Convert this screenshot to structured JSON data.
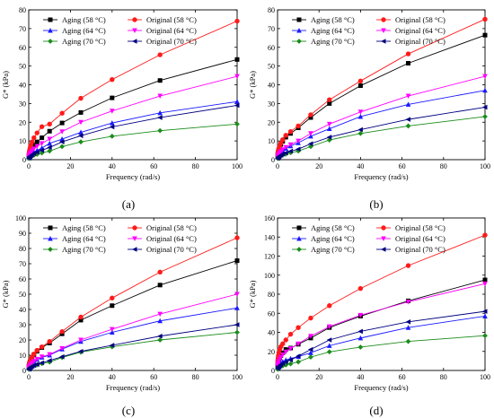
{
  "colors": {
    "aging58": "#000000",
    "orig58": "#ff1a1a",
    "aging64": "#1a1aff",
    "orig64": "#ff00ff",
    "aging70": "#1a8c1a",
    "orig70": "#000080"
  },
  "chart_data": [
    {
      "type": "line",
      "panel_label": "(a)",
      "xlabel": "Frequency (rad/s)",
      "ylabel": "G* (kPa)",
      "xlim": [
        0,
        100
      ],
      "ylim": [
        0,
        80
      ],
      "xticks": [
        0,
        20,
        40,
        60,
        80,
        100
      ],
      "yticks": [
        0,
        10,
        20,
        30,
        40,
        50,
        60,
        70,
        80
      ],
      "x": [
        0.1,
        0.16,
        0.25,
        0.4,
        0.63,
        1,
        1.6,
        2.5,
        4,
        6.3,
        10,
        16,
        25,
        40,
        63,
        100
      ],
      "legend": "top-left",
      "series": [
        {
          "name": "Aging (58 °C)",
          "color_key": "aging58",
          "marker": "square",
          "values": [
            1.8,
            2.2,
            2.8,
            3.5,
            4.3,
            5.2,
            6.4,
            7.8,
            9.5,
            11.7,
            15.2,
            19.6,
            25.2,
            33.0,
            42.3,
            53.5
          ]
        },
        {
          "name": "Original (58 °C)",
          "color_key": "orig58",
          "marker": "circle",
          "values": [
            2.7,
            3.3,
            4.1,
            5.1,
            6.3,
            7.7,
            9.5,
            11.7,
            14.3,
            17.6,
            19.0,
            24.8,
            32.8,
            42.8,
            56.0,
            74.0
          ]
        },
        {
          "name": "Aging (64 °C)",
          "color_key": "aging64",
          "marker": "triangle-up",
          "values": [
            1.0,
            1.2,
            1.5,
            1.9,
            2.3,
            2.8,
            3.4,
            4.1,
            5.0,
            6.2,
            8.7,
            11.0,
            14.6,
            19.6,
            25.0,
            31.0
          ]
        },
        {
          "name": "Original (64 °C)",
          "color_key": "orig64",
          "marker": "triangle-down",
          "values": [
            1.4,
            1.7,
            2.1,
            2.6,
            3.2,
            3.9,
            4.8,
            5.8,
            7.1,
            8.7,
            11.0,
            15.0,
            20.0,
            26.0,
            34.0,
            44.5
          ]
        },
        {
          "name": "Aging (70 °C)",
          "color_key": "aging70",
          "marker": "diamond",
          "values": [
            0.6,
            0.7,
            0.9,
            1.1,
            1.3,
            1.6,
            2.0,
            2.4,
            2.9,
            3.6,
            4.6,
            7.0,
            9.5,
            12.5,
            15.5,
            19.0
          ]
        },
        {
          "name": "Original (70 °C)",
          "color_key": "orig70",
          "marker": "triangle-left",
          "values": [
            0.8,
            1.0,
            1.2,
            1.5,
            1.8,
            2.2,
            2.7,
            3.3,
            4.0,
            5.0,
            6.5,
            9.5,
            12.8,
            17.5,
            22.5,
            29.0
          ]
        }
      ]
    },
    {
      "type": "line",
      "panel_label": "(b)",
      "xlabel": "Frequency (rad/s)",
      "ylabel": "G* (kPa)",
      "xlim": [
        0,
        100
      ],
      "ylim": [
        0,
        80
      ],
      "xticks": [
        0,
        20,
        40,
        60,
        80,
        100
      ],
      "yticks": [
        0,
        10,
        20,
        30,
        40,
        50,
        60,
        70,
        80
      ],
      "x": [
        0.1,
        0.16,
        0.25,
        0.4,
        0.63,
        1,
        1.6,
        2.5,
        4,
        6.3,
        10,
        16,
        25,
        40,
        63,
        100
      ],
      "legend": "top-left",
      "series": [
        {
          "name": "Aging (58 °C)",
          "color_key": "aging58",
          "marker": "square",
          "values": [
            2.4,
            2.9,
            3.6,
            4.4,
            5.4,
            6.6,
            8.1,
            9.8,
            12.0,
            14.0,
            17.0,
            22.5,
            30.0,
            39.5,
            51.5,
            66.5
          ]
        },
        {
          "name": "Original (58 °C)",
          "color_key": "orig58",
          "marker": "circle",
          "values": [
            2.6,
            3.2,
            3.9,
            4.8,
            5.9,
            7.2,
            8.8,
            10.7,
            13.0,
            15.0,
            18.0,
            24.0,
            32.0,
            42.0,
            56.5,
            75.0
          ]
        },
        {
          "name": "Aging (64 °C)",
          "color_key": "aging64",
          "marker": "triangle-up",
          "values": [
            1.2,
            1.5,
            1.8,
            2.2,
            2.7,
            3.3,
            4.0,
            4.9,
            6.0,
            7.3,
            9.0,
            12.5,
            16.5,
            23.0,
            29.5,
            37.0
          ]
        },
        {
          "name": "Original (64 °C)",
          "color_key": "orig64",
          "marker": "triangle-down",
          "values": [
            1.3,
            1.6,
            2.0,
            2.4,
            3.0,
            3.6,
            4.4,
            5.4,
            6.6,
            8.0,
            10.0,
            14.0,
            19.0,
            25.5,
            34.0,
            44.5
          ]
        },
        {
          "name": "Aging (70 °C)",
          "color_key": "aging70",
          "marker": "diamond",
          "values": [
            0.6,
            0.7,
            0.9,
            1.1,
            1.3,
            1.6,
            2.0,
            2.4,
            3.0,
            3.7,
            4.6,
            7.0,
            10.5,
            14.0,
            18.0,
            23.0
          ]
        },
        {
          "name": "Original (70 °C)",
          "color_key": "orig70",
          "marker": "triangle-left",
          "values": [
            0.7,
            0.9,
            1.1,
            1.3,
            1.6,
            2.0,
            2.4,
            3.0,
            3.6,
            4.5,
            5.6,
            8.5,
            12.0,
            16.0,
            21.5,
            28.0
          ]
        }
      ]
    },
    {
      "type": "line",
      "panel_label": "(c)",
      "xlabel": "Frequency (rad/s)",
      "ylabel": "G* (kPa)",
      "xlim": [
        0,
        100
      ],
      "ylim": [
        0,
        100
      ],
      "xticks": [
        0,
        20,
        40,
        60,
        80,
        100
      ],
      "yticks": [
        0,
        10,
        20,
        30,
        40,
        50,
        60,
        70,
        80,
        90,
        100
      ],
      "x": [
        0.1,
        0.16,
        0.25,
        0.4,
        0.63,
        1,
        1.6,
        2.5,
        4,
        6.3,
        10,
        16,
        25,
        40,
        63,
        100
      ],
      "legend": "top-left",
      "series": [
        {
          "name": "Aging (58 °C)",
          "color_key": "aging58",
          "marker": "square",
          "values": [
            2.6,
            3.2,
            3.9,
            4.8,
            5.8,
            7.1,
            8.6,
            10.4,
            12.6,
            15.0,
            18.0,
            24.0,
            33.0,
            42.5,
            56.0,
            72.0
          ]
        },
        {
          "name": "Original (58 °C)",
          "color_key": "orig58",
          "marker": "circle",
          "values": [
            2.7,
            3.3,
            4.0,
            4.9,
            6.0,
            7.3,
            8.9,
            10.8,
            13.2,
            15.5,
            19.0,
            25.5,
            35.0,
            47.5,
            64.5,
            87.0
          ]
        },
        {
          "name": "Aging (64 °C)",
          "color_key": "aging64",
          "marker": "triangle-up",
          "values": [
            1.4,
            1.7,
            2.1,
            2.6,
            3.2,
            3.9,
            4.8,
            5.8,
            7.1,
            8.6,
            10.0,
            14.0,
            19.0,
            25.0,
            32.5,
            41.0
          ]
        },
        {
          "name": "Original (64 °C)",
          "color_key": "orig64",
          "marker": "triangle-down",
          "values": [
            1.5,
            1.8,
            2.2,
            2.7,
            3.3,
            4.0,
            4.9,
            6.0,
            7.4,
            9.0,
            10.5,
            14.5,
            20.0,
            27.0,
            37.0,
            50.0
          ]
        },
        {
          "name": "Aging (70 °C)",
          "color_key": "aging70",
          "marker": "diamond",
          "values": [
            0.7,
            0.9,
            1.1,
            1.3,
            1.6,
            2.0,
            2.4,
            3.0,
            3.7,
            4.5,
            5.5,
            8.5,
            12.0,
            15.5,
            20.0,
            25.0
          ]
        },
        {
          "name": "Original (70 °C)",
          "color_key": "orig70",
          "marker": "triangle-left",
          "values": [
            0.8,
            1.0,
            1.2,
            1.5,
            1.8,
            2.2,
            2.7,
            3.3,
            4.0,
            5.0,
            6.5,
            9.0,
            12.5,
            16.5,
            22.5,
            30.0
          ]
        }
      ]
    },
    {
      "type": "line",
      "panel_label": "(d)",
      "xlabel": "Frequency (rad/s)",
      "ylabel": "G* (kPa)",
      "xlim": [
        0,
        100
      ],
      "ylim": [
        0,
        160
      ],
      "xticks": [
        0,
        20,
        40,
        60,
        80,
        100
      ],
      "yticks": [
        0,
        20,
        40,
        60,
        80,
        100,
        120,
        140,
        160
      ],
      "x": [
        0.1,
        0.16,
        0.25,
        0.4,
        0.63,
        1,
        1.6,
        2.5,
        4,
        6.3,
        10,
        16,
        25,
        40,
        63,
        100
      ],
      "legend": "top-left",
      "series": [
        {
          "name": "Aging (58 °C)",
          "color_key": "aging58",
          "marker": "square",
          "values": [
            5.0,
            6.0,
            7.3,
            8.9,
            10.8,
            13.0,
            15.6,
            18.6,
            22.0,
            23.5,
            27.5,
            34.0,
            45.0,
            57.0,
            73.0,
            95.0
          ]
        },
        {
          "name": "Original (58 °C)",
          "color_key": "orig58",
          "marker": "circle",
          "values": [
            9.0,
            10.8,
            13.0,
            15.6,
            18.6,
            22.0,
            25.0,
            28.0,
            32.0,
            38.0,
            45.0,
            55.0,
            68.0,
            86.0,
            110.0,
            142.0
          ]
        },
        {
          "name": "Aging (64 °C)",
          "color_key": "aging64",
          "marker": "triangle-up",
          "values": [
            2.5,
            3.0,
            3.7,
            4.5,
            5.4,
            6.5,
            7.8,
            9.3,
            11.0,
            12.5,
            14.5,
            18.5,
            26.0,
            34.0,
            45.0,
            57.0
          ]
        },
        {
          "name": "Original (64 °C)",
          "color_key": "orig64",
          "marker": "triangle-down",
          "values": [
            4.5,
            5.4,
            6.5,
            7.9,
            9.5,
            11.5,
            13.8,
            16.5,
            19.5,
            23.0,
            28.0,
            36.0,
            46.0,
            58.0,
            72.0,
            91.0
          ]
        },
        {
          "name": "Aging (70 °C)",
          "color_key": "aging70",
          "marker": "diamond",
          "values": [
            1.2,
            1.5,
            1.8,
            2.2,
            2.7,
            3.3,
            4.0,
            4.8,
            5.8,
            7.0,
            9.0,
            14.0,
            19.5,
            24.5,
            30.5,
            36.5
          ]
        },
        {
          "name": "Original (70 °C)",
          "color_key": "orig70",
          "marker": "triangle-left",
          "values": [
            2.0,
            2.4,
            2.9,
            3.5,
            4.2,
            5.1,
            6.2,
            7.5,
            9.0,
            11.0,
            15.0,
            22.0,
            32.0,
            41.0,
            51.0,
            62.0
          ]
        }
      ]
    }
  ]
}
